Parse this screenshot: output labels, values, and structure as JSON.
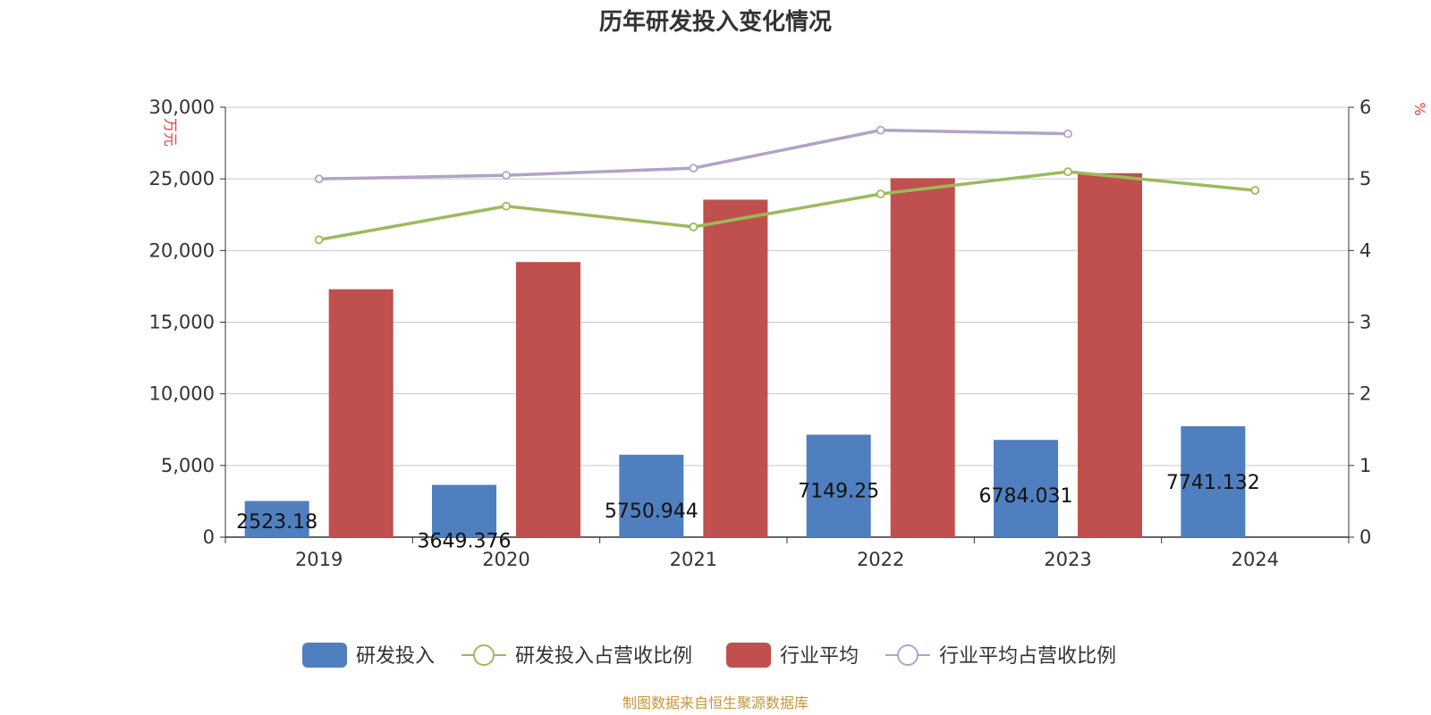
{
  "chart_data": {
    "type": "bar",
    "title": "历年研发投入变化情况",
    "categories": [
      "2019",
      "2020",
      "2021",
      "2022",
      "2023",
      "2024"
    ],
    "y_left": {
      "label": "万元",
      "ylim": [
        0,
        30000
      ],
      "ticks": [
        "0",
        "5,000",
        "10,000",
        "15,000",
        "20,000",
        "25,000",
        "30,000"
      ]
    },
    "y_right": {
      "label": "%",
      "ylim": [
        0,
        6
      ],
      "ticks": [
        "0",
        "1",
        "2",
        "3",
        "4",
        "5",
        "6"
      ]
    },
    "series": [
      {
        "name": "研发投入",
        "kind": "bar",
        "axis": "left",
        "color": "#4f7fbf",
        "values": [
          2523.18,
          3649.376,
          5750.944,
          7149.25,
          6784.031,
          7741.132
        ],
        "labels": [
          "2523.18",
          "3649.376",
          "5750.944",
          "7149.25",
          "6784.031",
          "7741.132"
        ]
      },
      {
        "name": "研发投入占营收比例",
        "kind": "line",
        "axis": "right",
        "color": "#9bbb59",
        "values": [
          4.15,
          4.62,
          4.33,
          4.79,
          5.1,
          4.84
        ]
      },
      {
        "name": "行业平均",
        "kind": "bar",
        "axis": "left",
        "color": "#c0504d",
        "values": [
          17300,
          19200,
          23550,
          25050,
          25400,
          null
        ]
      },
      {
        "name": "行业平均占营收比例",
        "kind": "line",
        "axis": "right",
        "color": "#b3a2c7",
        "values": [
          5.0,
          5.05,
          5.15,
          5.68,
          5.63,
          null
        ]
      }
    ],
    "grid": true,
    "legend_position": "bottom-center",
    "source": "制图数据来自恒生聚源数据库"
  }
}
